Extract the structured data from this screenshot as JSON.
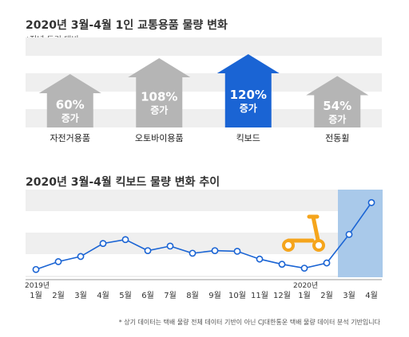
{
  "section1": {
    "title": "2020년 3월-4월 1인 교통용품 물량 변화",
    "subtitle": "*전년 동기 대비"
  },
  "section2": {
    "title": "2020년 3월-4월 킥보드 물량 변화 추이"
  },
  "footnote": "* 상기 데이터는 택배 물량 전체 데이터 기반이 아닌 CJ대한통운 택배 물량 데이터 분석 기반입니다",
  "colors": {
    "accent": "#1a64d4",
    "arrow_gray": "#b5b5b5",
    "band": "#efefef",
    "line": "#1a64d4",
    "highlight": "#a9c9ea",
    "scooter": "#f5a51c"
  },
  "icons": [
    "scooter-icon"
  ],
  "chart_data": [
    {
      "type": "bar",
      "title": "2020년 3월-4월 1인 교통용품 물량 변화",
      "subtitle": "*전년 동기 대비",
      "categories": [
        "자전거용품",
        "오토바이용품",
        "킥보드",
        "전동휠"
      ],
      "values": [
        60,
        108,
        120,
        54
      ],
      "value_labels": [
        "60%",
        "108%",
        "120%",
        "54%"
      ],
      "value_suffix": "증가",
      "unit": "%",
      "highlight": "킥보드"
    },
    {
      "type": "line",
      "title": "2020년 3월-4월 킥보드 물량 변화 추이",
      "x": [
        "1월",
        "2월",
        "3월",
        "4월",
        "5월",
        "6월",
        "7월",
        "8월",
        "9월",
        "10월",
        "11월",
        "12월",
        "1월",
        "2월",
        "3월",
        "4월"
      ],
      "year_labels": [
        {
          "index": 0,
          "label": "2019년"
        },
        {
          "index": 12,
          "label": "2020년"
        }
      ],
      "values": [
        12,
        24,
        32,
        52,
        58,
        41,
        48,
        37,
        41,
        40,
        28,
        20,
        14,
        22,
        66,
        115
      ],
      "ylim": [
        0,
        135
      ],
      "highlight_range": [
        14,
        15
      ],
      "grid": true
    }
  ]
}
